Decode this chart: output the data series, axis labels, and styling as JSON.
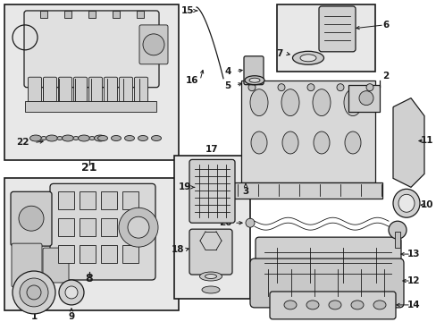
{
  "bg_color": "#ffffff",
  "lc": "#1a1a1a",
  "gray_fill": "#d8d8d8",
  "box_fill": "#e8e8e8",
  "label_fs": 7.5,
  "bold_fs": 9,
  "figsize": [
    4.89,
    3.6
  ],
  "dpi": 100
}
